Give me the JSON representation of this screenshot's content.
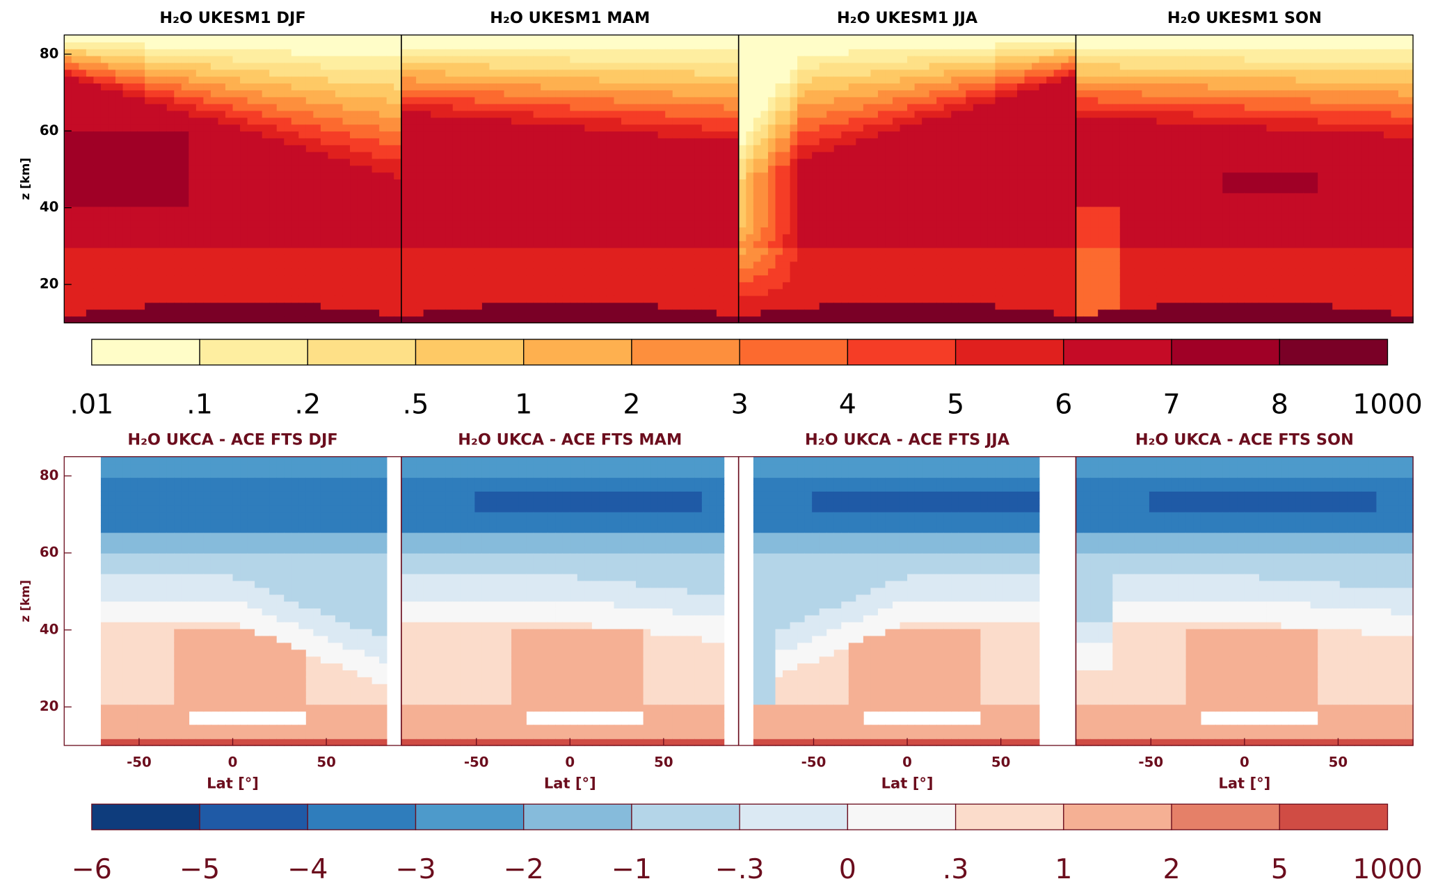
{
  "chart_data": [
    {
      "type": "contour",
      "title": "H₂O UKESM1 DJF",
      "ylabel": "z [km]",
      "xlim": [
        -90,
        90
      ],
      "ylim": [
        10,
        85
      ],
      "yticks": [
        20,
        40,
        60,
        80
      ],
      "axis_color": "#000000"
    },
    {
      "type": "contour",
      "title": "H₂O UKESM1 MAM",
      "xlim": [
        -90,
        90
      ],
      "ylim": [
        10,
        85
      ],
      "axis_color": "#000000"
    },
    {
      "type": "contour",
      "title": "H₂O UKESM1 JJA",
      "xlim": [
        -90,
        90
      ],
      "ylim": [
        10,
        85
      ],
      "axis_color": "#000000"
    },
    {
      "type": "contour",
      "title": "H₂O UKESM1 SON",
      "xlim": [
        -90,
        90
      ],
      "ylim": [
        10,
        85
      ],
      "axis_color": "#000000"
    },
    {
      "type": "contour",
      "title": "H₂O UKCA - ACE FTS DJF",
      "ylabel": "z [km]",
      "xlabel": "Lat [°]",
      "xlim": [
        -90,
        90
      ],
      "ylim": [
        10,
        85
      ],
      "xticks": [
        -50,
        0,
        50
      ],
      "yticks": [
        20,
        40,
        60,
        80
      ],
      "axis_color": "#6b0d1d"
    },
    {
      "type": "contour",
      "title": "H₂O UKCA - ACE FTS MAM",
      "xlabel": "Lat [°]",
      "xlim": [
        -90,
        90
      ],
      "ylim": [
        10,
        85
      ],
      "xticks": [
        -50,
        0,
        50
      ],
      "axis_color": "#6b0d1d"
    },
    {
      "type": "contour",
      "title": "H₂O UKCA - ACE FTS JJA",
      "xlabel": "Lat [°]",
      "xlim": [
        -90,
        90
      ],
      "ylim": [
        10,
        85
      ],
      "xticks": [
        -50,
        0,
        50
      ],
      "axis_color": "#6b0d1d"
    },
    {
      "type": "contour",
      "title": "H₂O UKCA - ACE FTS SON",
      "xlabel": "Lat [°]",
      "xlim": [
        -90,
        90
      ],
      "ylim": [
        10,
        85
      ],
      "xticks": [
        -50,
        0,
        50
      ],
      "axis_color": "#6b0d1d"
    }
  ],
  "colorbars": [
    {
      "colors": [
        "#fffdc8",
        "#feeea0",
        "#fee087",
        "#fec965",
        "#feb04f",
        "#fd8f3d",
        "#fc6a2f",
        "#f53d26",
        "#e0201e",
        "#c50b26",
        "#a00026",
        "#7a0026"
      ],
      "ticks": [
        {
          "value": 0.01,
          "label": ".01"
        },
        {
          "value": 0.1,
          "label": ".1"
        },
        {
          "value": 0.2,
          "label": ".2"
        },
        {
          "value": 0.5,
          "label": ".5"
        },
        1,
        2,
        3,
        4,
        5,
        6,
        7,
        8,
        1000
      ],
      "label_color": "#000000"
    },
    {
      "colors": [
        "#0e3c7c",
        "#1f5aa6",
        "#2f7dbc",
        "#4d9acb",
        "#86bbdb",
        "#b4d5e8",
        "#dbe9f3",
        "#f7f7f7",
        "#fbdccb",
        "#f5b094",
        "#e58068",
        "#d04c44"
      ],
      "ticks": [
        {
          "value": -6,
          "label": "−6"
        },
        {
          "value": -5,
          "label": "−5"
        },
        {
          "value": -4,
          "label": "−4"
        },
        {
          "value": -3,
          "label": "−3"
        },
        {
          "value": -2,
          "label": "−2"
        },
        {
          "value": -1,
          "label": "−1"
        },
        {
          "value": -0.3,
          "label": "−.3"
        },
        0,
        {
          "value": 0.3,
          "label": ".3"
        },
        1,
        2,
        5,
        1000
      ],
      "label_color": "#6b0d1d"
    }
  ]
}
